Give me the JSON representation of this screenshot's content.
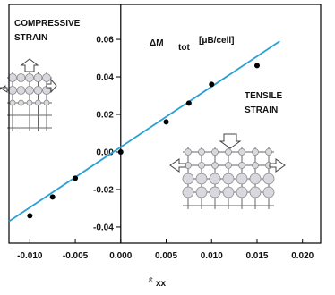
{
  "chart_data": {
    "type": "scatter",
    "annotations": {
      "compressive": [
        "COMPRESSIVE",
        "STRAIN"
      ],
      "tensile": [
        "TENSILE",
        "STRAIN"
      ],
      "ylabel_main": "ΔM",
      "ylabel_sub": "tot",
      "ylabel_unit": "[μB/cell]"
    },
    "xlabel_main": "ε",
    "xlabel_sub": "xx",
    "x": [
      -0.01,
      -0.0075,
      -0.005,
      0.0,
      0.005,
      0.0075,
      0.01,
      0.015
    ],
    "values": [
      -0.034,
      -0.024,
      -0.014,
      0.0,
      0.016,
      0.026,
      0.036,
      0.046
    ],
    "color": "#000000",
    "fit": {
      "x": [
        -0.0123,
        0.0175
      ],
      "values": [
        -0.037,
        0.059
      ],
      "color": "#2a9fd6"
    },
    "xlim": [
      -0.0123,
      0.022
    ],
    "ylim": [
      -0.0486,
      0.0786
    ],
    "xticks": [
      {
        "value": -0.01,
        "label": "-0.010"
      },
      -0.005,
      {
        "value": 0.0,
        "label": "0.000"
      },
      0.005,
      {
        "value": 0.01,
        "label": "0.010"
      },
      0.015,
      {
        "value": 0.02,
        "label": "0.020"
      }
    ],
    "yticks": [
      -0.04,
      -0.02,
      {
        "value": 0.0,
        "label": "0.00"
      },
      0.02,
      0.04,
      0.06
    ]
  }
}
